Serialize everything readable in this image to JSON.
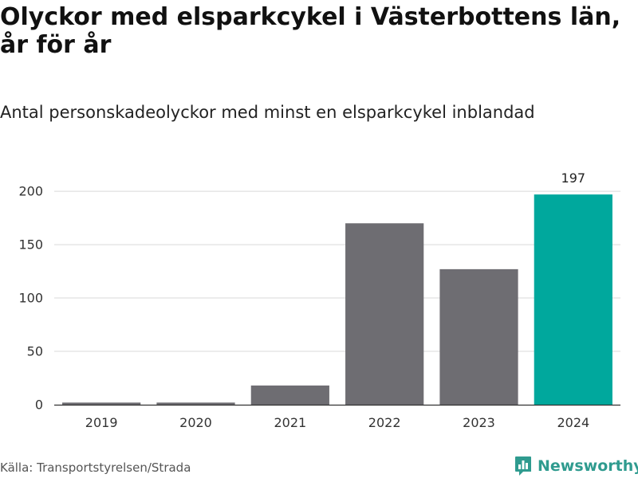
{
  "header": {
    "title": "Olyckor med elsparkcykel i Västerbottens län, år för år",
    "subtitle": "Antal personskadeolyckor med minst en elsparkcykel inblandad"
  },
  "footer": {
    "source": "Källa: Transportstyrelsen/Strada",
    "brand": "Newsworthy",
    "brand_icon": "bar-chart-logo-icon"
  },
  "colors": {
    "bar_default": "#6e6d72",
    "bar_highlight": "#00a89d",
    "grid": "#d9d9d9",
    "axis": "#333333",
    "brand": "#2f9b8f"
  },
  "chart_data": {
    "type": "bar",
    "categories": [
      "2019",
      "2020",
      "2021",
      "2022",
      "2023",
      "2024"
    ],
    "values": [
      2,
      2,
      18,
      170,
      127,
      197
    ],
    "highlight_index": 5,
    "value_labels": [
      "",
      "",
      "",
      "",
      "",
      "197"
    ],
    "yticks": [
      0,
      50,
      100,
      150,
      200
    ],
    "ylim": [
      0,
      215
    ],
    "title": "Olyckor med elsparkcykel i Västerbottens län, år för år",
    "subtitle": "Antal personskadeolyckor med minst en elsparkcykel inblandad",
    "xlabel": "",
    "ylabel": "",
    "grid": true,
    "legend": "none"
  }
}
